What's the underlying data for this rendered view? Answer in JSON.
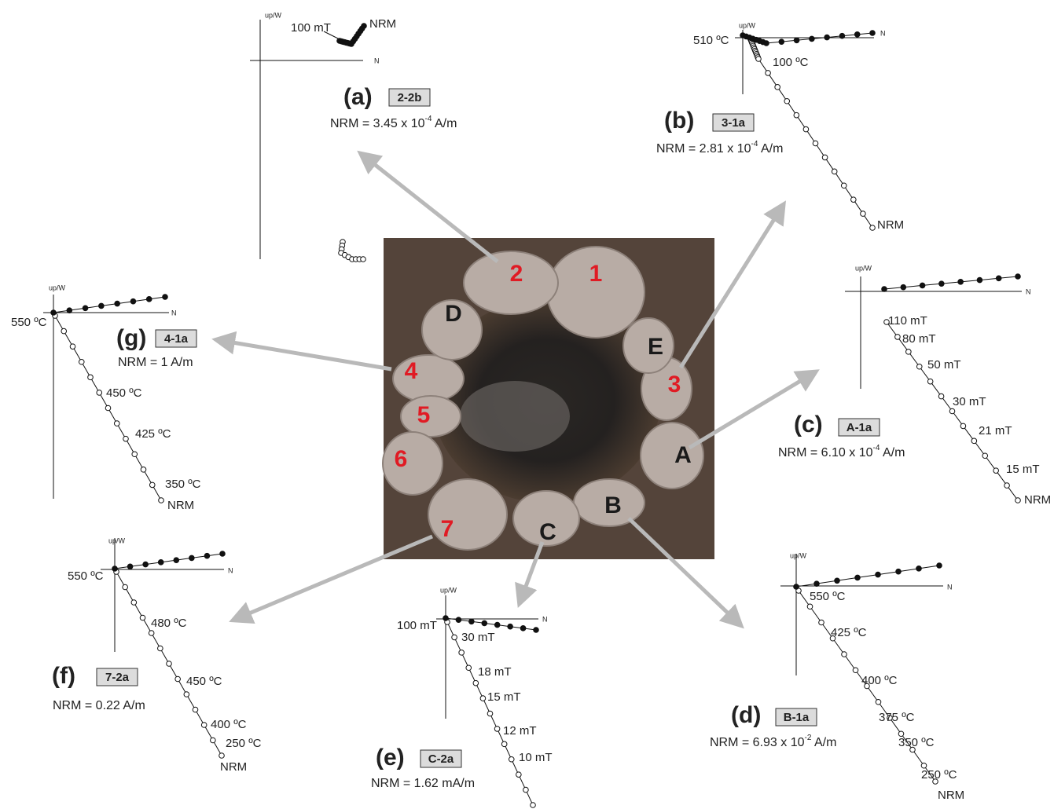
{
  "photo": {
    "stones": [
      "1",
      "2",
      "3",
      "4",
      "5",
      "6",
      "7",
      "D",
      "E",
      "A",
      "B",
      "C"
    ]
  },
  "panels": [
    {
      "letter": "(a)",
      "sample": "2-2b",
      "nrm": [
        "NRM = 3.45 x 10",
        "-4",
        " A/m"
      ],
      "up": "up/W",
      "n": "N",
      "labels": [
        "100 mT",
        "NRM"
      ]
    },
    {
      "letter": "(b)",
      "sample": "3-1a",
      "nrm": [
        "NRM = 2.81 x 10",
        "-4",
        " A/m"
      ],
      "up": "up/W",
      "n": "N",
      "labels": [
        "510 ºC",
        "100 ºC",
        "NRM"
      ]
    },
    {
      "letter": "(c)",
      "sample": "A-1a",
      "nrm": [
        "NRM = 6.10 x 10",
        "-4",
        " A/m"
      ],
      "up": "up/W",
      "n": "N",
      "labels": [
        "110 mT",
        "80 mT",
        "50 mT",
        "30 mT",
        "21 mT",
        "15 mT",
        "NRM"
      ]
    },
    {
      "letter": "(d)",
      "sample": "B-1a",
      "nrm": [
        "NRM = 6.93 x 10",
        "-2",
        " A/m"
      ],
      "up": "up/W",
      "n": "N",
      "labels": [
        "550 ºC",
        "425 ºC",
        "400 ºC",
        "375 ºC",
        "350 ºC",
        "250 ºC",
        "NRM"
      ]
    },
    {
      "letter": "(e)",
      "sample": "C-2a",
      "nrm": [
        "NRM = 1.62 mA/m"
      ],
      "up": "up/W",
      "n": "N",
      "labels": [
        "100 mT",
        "30 mT",
        "18 mT",
        "15 mT",
        "12 mT",
        "10 mT"
      ]
    },
    {
      "letter": "(f)",
      "sample": "7-2a",
      "nrm": [
        "NRM = 0.22 A/m"
      ],
      "up": "up/W",
      "n": "N",
      "labels": [
        "550 ºC",
        "480 ºC",
        "450 ºC",
        "400 ºC",
        "250 ºC",
        "NRM"
      ]
    },
    {
      "letter": "(g)",
      "sample": "4-1a",
      "nrm": [
        "NRM = 1 A/m"
      ],
      "up": "up/W",
      "n": "N",
      "labels": [
        "550 ºC",
        "450 ºC",
        "425 ºC",
        "350 ºC",
        "NRM"
      ]
    }
  ]
}
